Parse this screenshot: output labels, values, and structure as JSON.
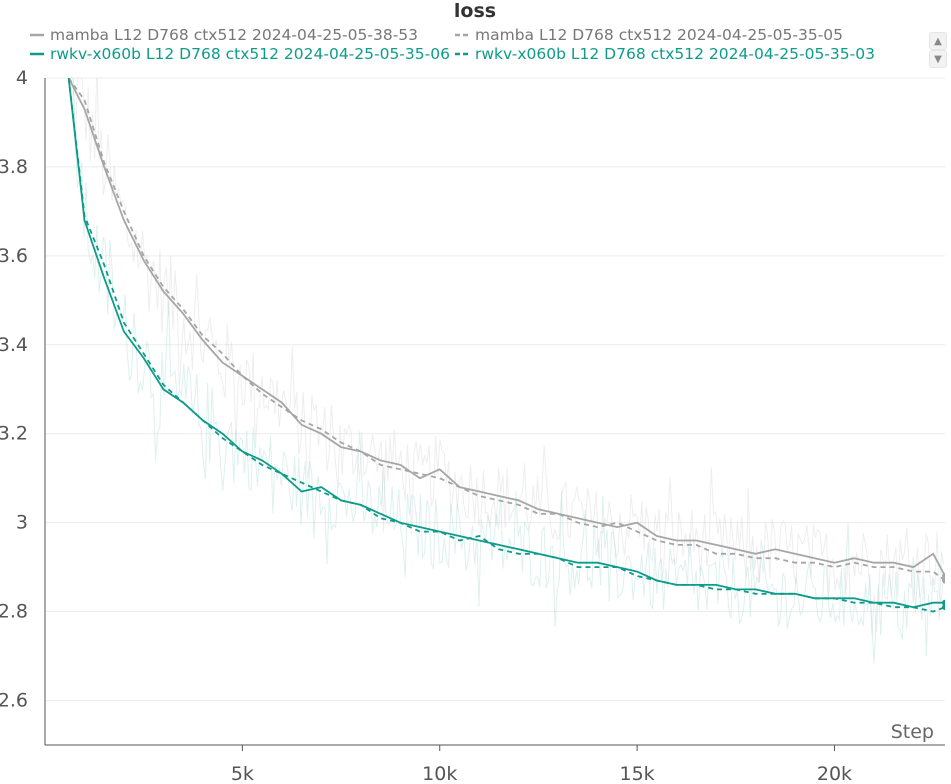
{
  "chart_data": {
    "type": "line",
    "title": "loss",
    "xlabel": "Step",
    "ylabel": "",
    "xlim": [
      0,
      22800
    ],
    "ylim": [
      2.5,
      4.0
    ],
    "x_ticks": [
      5000,
      10000,
      15000,
      20000
    ],
    "x_tick_labels": [
      "5k",
      "10k",
      "15k",
      "20k"
    ],
    "y_ticks": [
      2.6,
      2.8,
      3.0,
      3.2,
      3.4,
      3.6,
      3.8,
      4.0
    ],
    "y_tick_labels": [
      "2.6",
      "2.8",
      "3",
      "3.2",
      "3.4",
      "3.6",
      "3.8",
      "4"
    ],
    "grid": true,
    "legend_position": "top",
    "series": [
      {
        "name": "mamba L12 D768 ctx512 2024-04-25-05-38-53",
        "color": "#a6a6a6",
        "style": "solid",
        "x": [
          600,
          1000,
          1500,
          2000,
          2500,
          3000,
          3500,
          4000,
          4500,
          5000,
          5500,
          6000,
          6500,
          7000,
          7500,
          8000,
          8500,
          9000,
          9500,
          10000,
          10500,
          11000,
          11500,
          12000,
          12500,
          13000,
          13500,
          14000,
          14500,
          15000,
          15500,
          16000,
          16500,
          17000,
          17500,
          18000,
          18500,
          19000,
          19500,
          20000,
          20500,
          21000,
          21500,
          22000,
          22500,
          22800
        ],
        "values": [
          4.0,
          3.93,
          3.8,
          3.68,
          3.59,
          3.52,
          3.47,
          3.41,
          3.36,
          3.33,
          3.3,
          3.27,
          3.22,
          3.2,
          3.17,
          3.16,
          3.14,
          3.13,
          3.1,
          3.12,
          3.08,
          3.07,
          3.06,
          3.05,
          3.03,
          3.02,
          3.01,
          3.0,
          2.99,
          3.0,
          2.97,
          2.96,
          2.96,
          2.95,
          2.94,
          2.93,
          2.94,
          2.93,
          2.92,
          2.91,
          2.92,
          2.91,
          2.91,
          2.9,
          2.93,
          2.88
        ]
      },
      {
        "name": "mamba L12 D768 ctx512 2024-04-25-05-35-05",
        "color": "#a6a6a6",
        "style": "dashed",
        "x": [
          600,
          1000,
          1500,
          2000,
          2500,
          3000,
          3500,
          4000,
          4500,
          5000,
          5500,
          6000,
          6500,
          7000,
          7500,
          8000,
          8500,
          9000,
          9500,
          10000,
          10500,
          11000,
          11500,
          12000,
          12500,
          13000,
          13500,
          14000,
          14500,
          15000,
          15500,
          16000,
          16500,
          17000,
          17500,
          18000,
          18500,
          19000,
          19500,
          20000,
          20500,
          21000,
          21500,
          22000,
          22500,
          22800
        ],
        "values": [
          4.0,
          3.95,
          3.81,
          3.7,
          3.6,
          3.53,
          3.48,
          3.42,
          3.38,
          3.33,
          3.29,
          3.26,
          3.23,
          3.21,
          3.18,
          3.16,
          3.13,
          3.12,
          3.11,
          3.1,
          3.08,
          3.06,
          3.05,
          3.04,
          3.02,
          3.02,
          3.0,
          2.99,
          3.0,
          2.98,
          2.96,
          2.95,
          2.95,
          2.93,
          2.93,
          2.92,
          2.92,
          2.91,
          2.91,
          2.9,
          2.91,
          2.9,
          2.9,
          2.89,
          2.89,
          2.87
        ]
      },
      {
        "name": "rwkv-x060b L12 D768 ctx512 2024-04-25-05-35-06",
        "color": "#0e9b8a",
        "style": "solid",
        "x": [
          600,
          1000,
          1500,
          2000,
          2500,
          3000,
          3500,
          4000,
          4500,
          5000,
          5500,
          6000,
          6500,
          7000,
          7500,
          8000,
          8500,
          9000,
          9500,
          10000,
          10500,
          11000,
          11500,
          12000,
          12500,
          13000,
          13500,
          14000,
          14500,
          15000,
          15500,
          16000,
          16500,
          17000,
          17500,
          18000,
          18500,
          19000,
          19500,
          20000,
          20500,
          21000,
          21500,
          22000,
          22500,
          22800
        ],
        "values": [
          4.0,
          3.68,
          3.55,
          3.43,
          3.37,
          3.3,
          3.27,
          3.23,
          3.2,
          3.16,
          3.14,
          3.11,
          3.07,
          3.08,
          3.05,
          3.04,
          3.02,
          3.0,
          2.99,
          2.98,
          2.97,
          2.96,
          2.95,
          2.94,
          2.93,
          2.92,
          2.91,
          2.91,
          2.9,
          2.89,
          2.87,
          2.86,
          2.86,
          2.86,
          2.85,
          2.85,
          2.84,
          2.84,
          2.83,
          2.83,
          2.83,
          2.82,
          2.82,
          2.81,
          2.82,
          2.82
        ]
      },
      {
        "name": "rwkv-x060b L12 D768 ctx512 2024-04-25-05-35-03",
        "color": "#0e9b8a",
        "style": "dashed",
        "x": [
          600,
          1000,
          1500,
          2000,
          2500,
          3000,
          3500,
          4000,
          4500,
          5000,
          5500,
          6000,
          6500,
          7000,
          7500,
          8000,
          8500,
          9000,
          9500,
          10000,
          10500,
          11000,
          11500,
          12000,
          12500,
          13000,
          13500,
          14000,
          14500,
          15000,
          15500,
          16000,
          16500,
          17000,
          17500,
          18000,
          18500,
          19000,
          19500,
          20000,
          20500,
          21000,
          21500,
          22000,
          22500,
          22800
        ],
        "values": [
          4.0,
          3.69,
          3.58,
          3.45,
          3.38,
          3.31,
          3.27,
          3.23,
          3.19,
          3.16,
          3.13,
          3.11,
          3.09,
          3.07,
          3.05,
          3.04,
          3.01,
          3.0,
          2.98,
          2.98,
          2.96,
          2.97,
          2.94,
          2.93,
          2.93,
          2.92,
          2.9,
          2.9,
          2.9,
          2.88,
          2.87,
          2.86,
          2.86,
          2.85,
          2.85,
          2.84,
          2.84,
          2.84,
          2.83,
          2.83,
          2.82,
          2.82,
          2.81,
          2.81,
          2.8,
          2.81
        ]
      }
    ]
  },
  "legend": {
    "scroll_up_icon": "triangle-up-icon",
    "scroll_down_icon": "triangle-down-icon"
  }
}
